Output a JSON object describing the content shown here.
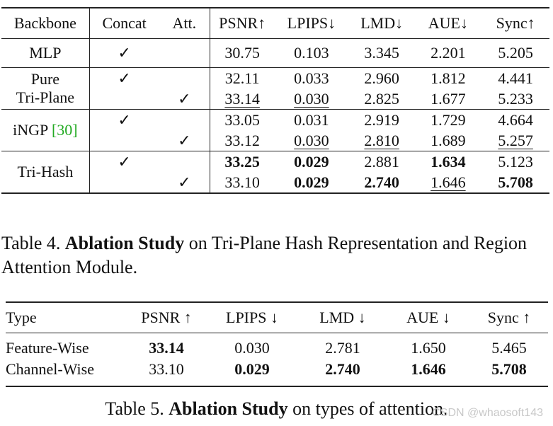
{
  "table4": {
    "headers": [
      "Backbone",
      "Concat",
      "Att.",
      "PSNR↑",
      "LPIPS↓",
      "LMD↓",
      "AUE↓",
      "Sync↑"
    ],
    "groups": [
      {
        "backbone": [
          "MLP"
        ],
        "rows": [
          {
            "concat": "✓",
            "att": "",
            "psnr": "30.75",
            "lpips": "0.103",
            "lmd": "3.345",
            "aue": "2.201",
            "sync": "5.205"
          }
        ]
      },
      {
        "backbone": [
          "Pure",
          "Tri-Plane"
        ],
        "rows": [
          {
            "concat": "✓",
            "att": "",
            "psnr": "32.11",
            "lpips": "0.033",
            "lmd": "2.960",
            "aue": "1.812",
            "sync": "4.441"
          },
          {
            "concat": "",
            "att": "✓",
            "psnr": "33.14",
            "lpips": "0.030",
            "lmd": "2.825",
            "aue": "1.677",
            "sync": "5.233"
          }
        ]
      },
      {
        "backbone": [
          "iNGP",
          "[30]"
        ],
        "rows": [
          {
            "concat": "✓",
            "att": "",
            "psnr": "33.05",
            "lpips": "0.031",
            "lmd": "2.919",
            "aue": "1.729",
            "sync": "4.664"
          },
          {
            "concat": "",
            "att": "✓",
            "psnr": "33.12",
            "lpips": "0.030",
            "lmd": "2.810",
            "aue": "1.689",
            "sync": "5.257"
          }
        ]
      },
      {
        "backbone": [
          "Tri-Hash"
        ],
        "rows": [
          {
            "concat": "✓",
            "att": "",
            "psnr": "33.25",
            "lpips": "0.029",
            "lmd": "2.881",
            "aue": "1.634",
            "sync": "5.123"
          },
          {
            "concat": "",
            "att": "✓",
            "psnr": "33.10",
            "lpips": "0.029",
            "lmd": "2.740",
            "aue": "1.646",
            "sync": "5.708"
          }
        ]
      }
    ],
    "caption": {
      "prefix": "Table 4.",
      "bold": "Ablation Study",
      "rest": "on Tri-Plane Hash Representation and Region Attention Module."
    }
  },
  "table5": {
    "headers": [
      "Type",
      "PSNR ↑",
      "LPIPS ↓",
      "LMD ↓",
      "AUE ↓",
      "Sync ↑"
    ],
    "rows": [
      {
        "type": "Feature-Wise",
        "psnr": "33.14",
        "lpips": "0.030",
        "lmd": "2.781",
        "aue": "1.650",
        "sync": "5.465"
      },
      {
        "type": "Channel-Wise",
        "psnr": "33.10",
        "lpips": "0.029",
        "lmd": "2.740",
        "aue": "1.646",
        "sync": "5.708"
      }
    ],
    "caption": {
      "prefix": "Table 5.",
      "bold": "Ablation Study",
      "rest": "on types of attention."
    }
  },
  "watermark": "CSDN @whaosoft143"
}
